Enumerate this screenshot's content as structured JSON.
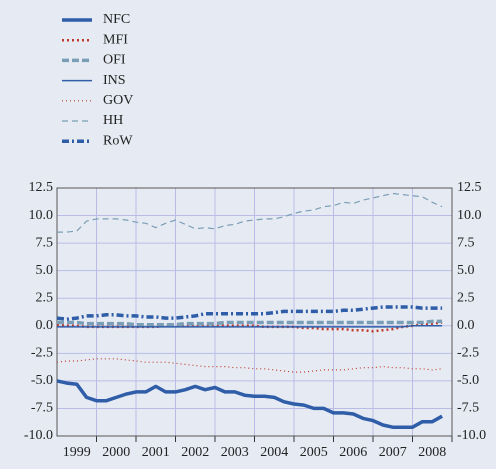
{
  "chart_data": {
    "type": "line",
    "x": [
      1999,
      1999.25,
      1999.5,
      1999.75,
      2000,
      2000.25,
      2000.5,
      2000.75,
      2001,
      2001.25,
      2001.5,
      2001.75,
      2002,
      2002.25,
      2002.5,
      2002.75,
      2003,
      2003.25,
      2003.5,
      2003.75,
      2004,
      2004.25,
      2004.5,
      2004.75,
      2005,
      2005.25,
      2005.5,
      2005.75,
      2006,
      2006.25,
      2006.5,
      2006.75,
      2007,
      2007.25,
      2007.5,
      2007.75,
      2008,
      2008.25,
      2008.5,
      2008.75
    ],
    "xlim": [
      1999,
      2009
    ],
    "xticks": [
      {
        "value": 1999.5,
        "label": "1999"
      },
      {
        "value": 2000.5,
        "label": "2000"
      },
      {
        "value": 2001.5,
        "label": "2001"
      },
      {
        "value": 2002.5,
        "label": "2002"
      },
      {
        "value": 2003.5,
        "label": "2003"
      },
      {
        "value": 2004.5,
        "label": "2004"
      },
      {
        "value": 2005.5,
        "label": "2005"
      },
      {
        "value": 2006.5,
        "label": "2006"
      },
      {
        "value": 2007.5,
        "label": "2007"
      },
      {
        "value": 2008.5,
        "label": "2008"
      }
    ],
    "ylim": [
      -10,
      12.5
    ],
    "yticks": [
      {
        "value": 12.5,
        "label": "12.5"
      },
      {
        "value": 10,
        "label": "10.0"
      },
      {
        "value": 7.5,
        "label": "7.5"
      },
      {
        "value": 5,
        "label": "5.0"
      },
      {
        "value": 2.5,
        "label": "2.5"
      },
      {
        "value": 0,
        "label": "0.0"
      },
      {
        "value": -2.5,
        "label": "-2.5"
      },
      {
        "value": -5,
        "label": "-5.0"
      },
      {
        "value": -7.5,
        "label": "-7.5"
      },
      {
        "value": -10,
        "label": "-10.0"
      }
    ],
    "grid": true,
    "series": [
      {
        "name": "NFC",
        "color": "#2f5da8",
        "style": "solid",
        "width": 3.5,
        "values": [
          -5.0,
          -5.2,
          -5.3,
          -6.5,
          -6.8,
          -6.8,
          -6.5,
          -6.2,
          -6.0,
          -6.0,
          -5.5,
          -6.0,
          -6.0,
          -5.8,
          -5.5,
          -5.8,
          -5.6,
          -6.0,
          -6.0,
          -6.3,
          -6.4,
          -6.4,
          -6.5,
          -6.9,
          -7.1,
          -7.2,
          -7.5,
          -7.5,
          -7.9,
          -7.9,
          -8.0,
          -8.4,
          -8.6,
          -9.0,
          -9.2,
          -9.2,
          -9.2,
          -8.7,
          -8.7,
          -8.2
        ]
      },
      {
        "name": "MFI",
        "color": "#c0392b",
        "style": "dotted",
        "width": 2.5,
        "values": [
          0.1,
          0.0,
          0.0,
          -0.1,
          -0.1,
          -0.1,
          -0.1,
          -0.1,
          -0.1,
          -0.1,
          -0.1,
          0.0,
          0.0,
          0.0,
          0.0,
          0.0,
          0.0,
          0.0,
          0.0,
          0.0,
          0.0,
          -0.1,
          -0.1,
          -0.1,
          -0.1,
          -0.2,
          -0.2,
          -0.3,
          -0.3,
          -0.3,
          -0.4,
          -0.4,
          -0.5,
          -0.4,
          -0.3,
          -0.1,
          0.0,
          0.1,
          0.2,
          0.3
        ]
      },
      {
        "name": "OFI",
        "color": "#7a9eb5",
        "style": "dashed",
        "width": 3.5,
        "values": [
          0.3,
          0.3,
          0.3,
          0.2,
          0.2,
          0.2,
          0.2,
          0.2,
          0.1,
          0.1,
          0.1,
          0.1,
          0.1,
          0.2,
          0.2,
          0.2,
          0.2,
          0.3,
          0.3,
          0.3,
          0.3,
          0.3,
          0.3,
          0.3,
          0.3,
          0.3,
          0.3,
          0.3,
          0.3,
          0.3,
          0.3,
          0.3,
          0.3,
          0.3,
          0.3,
          0.3,
          0.3,
          0.3,
          0.4,
          0.4
        ]
      },
      {
        "name": "INS",
        "color": "#2f5da8",
        "style": "solid",
        "width": 1.5,
        "values": [
          -0.1,
          -0.1,
          -0.1,
          -0.1,
          -0.1,
          -0.1,
          -0.1,
          -0.1,
          -0.1,
          -0.1,
          -0.1,
          -0.1,
          -0.1,
          -0.1,
          -0.1,
          -0.1,
          -0.1,
          -0.1,
          -0.1,
          -0.1,
          -0.1,
          -0.1,
          -0.1,
          -0.1,
          -0.1,
          -0.1,
          -0.1,
          -0.1,
          -0.1,
          -0.1,
          -0.1,
          -0.1,
          -0.1,
          -0.1,
          -0.1,
          -0.1,
          0.0,
          0.0,
          0.0,
          0.0
        ]
      },
      {
        "name": "GOV",
        "color": "#c0392b",
        "style": "dotted-thin",
        "width": 1.2,
        "values": [
          -3.3,
          -3.2,
          -3.2,
          -3.1,
          -3.0,
          -3.0,
          -3.0,
          -3.1,
          -3.2,
          -3.3,
          -3.3,
          -3.3,
          -3.4,
          -3.5,
          -3.6,
          -3.7,
          -3.7,
          -3.7,
          -3.8,
          -3.8,
          -3.9,
          -3.9,
          -4.0,
          -4.1,
          -4.2,
          -4.2,
          -4.1,
          -4.0,
          -4.0,
          -4.0,
          -3.9,
          -3.8,
          -3.8,
          -3.7,
          -3.8,
          -3.8,
          -3.9,
          -3.9,
          -4.0,
          -3.9
        ]
      },
      {
        "name": "HH",
        "color": "#7a9eb5",
        "style": "dashed-thin",
        "width": 1.2,
        "values": [
          8.5,
          8.5,
          8.6,
          9.5,
          9.7,
          9.7,
          9.7,
          9.6,
          9.4,
          9.3,
          8.9,
          9.3,
          9.6,
          9.2,
          8.8,
          8.9,
          8.8,
          9.1,
          9.2,
          9.5,
          9.6,
          9.7,
          9.7,
          9.9,
          10.2,
          10.4,
          10.5,
          10.8,
          10.9,
          11.2,
          11.1,
          11.4,
          11.6,
          11.8,
          12.0,
          11.9,
          11.8,
          11.7,
          11.2,
          10.8
        ]
      },
      {
        "name": "RoW",
        "color": "#2f5da8",
        "style": "dashdot",
        "width": 3.5,
        "values": [
          0.7,
          0.6,
          0.7,
          0.9,
          0.9,
          1.0,
          1.0,
          0.9,
          0.9,
          0.8,
          0.8,
          0.7,
          0.7,
          0.8,
          0.9,
          1.1,
          1.1,
          1.1,
          1.1,
          1.1,
          1.1,
          1.1,
          1.2,
          1.3,
          1.3,
          1.3,
          1.3,
          1.3,
          1.3,
          1.4,
          1.4,
          1.5,
          1.6,
          1.7,
          1.7,
          1.7,
          1.7,
          1.6,
          1.6,
          1.6
        ]
      }
    ]
  }
}
